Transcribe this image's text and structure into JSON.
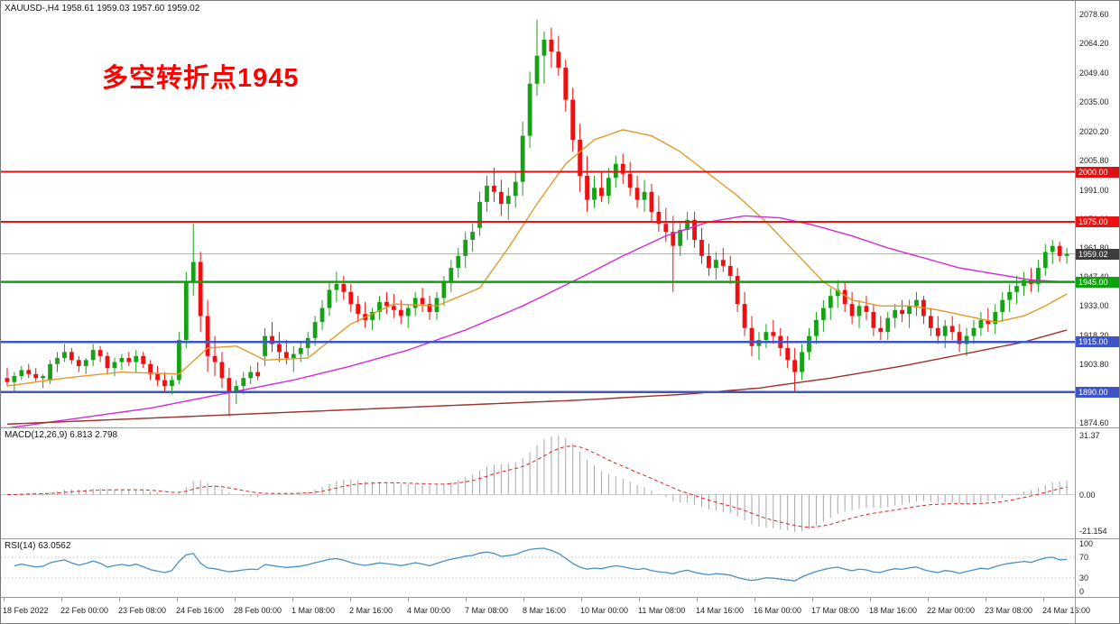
{
  "main_chart": {
    "symbol_line": "XAUUSD-,H4 1958.61 1959.03 1957.60 1959.02",
    "annotation": {
      "text": "多空转折点1945",
      "color": "#fe0000"
    },
    "bid": {
      "price": 1959.02,
      "label": "1959.02",
      "box_color": "#3c3c3c"
    },
    "y_axis_labels": [
      "2078.60",
      "2064.20",
      "2049.40",
      "2035.00",
      "2020.20",
      "2005.80",
      "1991.00",
      "1976.60",
      "1961.80",
      "1947.40",
      "1933.00",
      "1918.20",
      "1903.80",
      "1889.40",
      "1874.60"
    ],
    "h_lines": [
      {
        "price": 2000.0,
        "label": "2000.00",
        "color": "#dd1111",
        "width": 2
      },
      {
        "price": 1975.0,
        "label": "1975.00",
        "color": "#ee1111",
        "width": 2
      },
      {
        "price": 1945.0,
        "label": "1945.00",
        "color": "#0da30d",
        "width": 2.5
      },
      {
        "price": 1915.0,
        "label": "1915.00",
        "color": "#3d55c8",
        "width": 2.5
      },
      {
        "price": 1890.0,
        "label": "1890.00",
        "color": "#3d55c8",
        "width": 2.5
      }
    ]
  },
  "x_axis_labels": [
    "18 Feb 2022",
    "22 Feb 00:00",
    "23 Feb 08:00",
    "24 Feb 16:00",
    "28 Feb 00:00",
    "1 Mar 08:00",
    "2 Mar 16:00",
    "4 Mar 00:00",
    "7 Mar 08:00",
    "8 Mar 16:00",
    "10 Mar 00:00",
    "11 Mar 08:00",
    "14 Mar 16:00",
    "16 Mar 00:00",
    "17 Mar 08:00",
    "18 Mar 16:00",
    "22 Mar 00:00",
    "23 Mar 08:00",
    "24 Mar 16:00"
  ],
  "chart_data": {
    "type": "candlestick",
    "title": "XAUUSD- H4",
    "x_range": [
      "18 Feb 2022",
      "24 Mar 16:00"
    ],
    "y_range": [
      1874.6,
      2078.6
    ],
    "up_color": "#17a117",
    "down_color": "#ee0f0f",
    "candles": {
      "o": [
        1897,
        1895,
        1898,
        1901,
        1899,
        1897,
        1896,
        1904,
        1907,
        1910,
        1906,
        1903,
        1906,
        1911,
        1908,
        1902,
        1905,
        1907,
        1905,
        1908,
        1904,
        1899,
        1896,
        1893,
        1896,
        1916,
        1945,
        1955,
        1928,
        1908,
        1905,
        1897,
        1890,
        1893,
        1897,
        1900,
        1908,
        1918,
        1914,
        1910,
        1907,
        1909,
        1912,
        1917,
        1925,
        1932,
        1941,
        1944,
        1940,
        1934,
        1929,
        1926,
        1930,
        1935,
        1933,
        1931,
        1928,
        1932,
        1937,
        1934,
        1930,
        1937,
        1945,
        1952,
        1958,
        1966,
        1972,
        1985,
        1993,
        1990,
        1984,
        1988,
        1995,
        2018,
        2044,
        2058,
        2066,
        2060,
        2052,
        2036,
        2016,
        1998,
        1986,
        1992,
        1988,
        1997,
        2004,
        1999,
        1992,
        1986,
        1990,
        1980,
        1974,
        1970,
        1963,
        1971,
        1976,
        1966,
        1958,
        1952,
        1956,
        1953,
        1948,
        1934,
        1922,
        1913,
        1916,
        1920,
        1918,
        1912,
        1906,
        1900,
        1910,
        1918,
        1926,
        1932,
        1938,
        1941,
        1934,
        1928,
        1933,
        1930,
        1922,
        1920,
        1927,
        1931,
        1929,
        1933,
        1936,
        1928,
        1922,
        1918,
        1923,
        1920,
        1914,
        1918,
        1922,
        1926,
        1924,
        1930,
        1936,
        1940,
        1943,
        1946,
        1944,
        1952,
        1960,
        1963,
        1958
      ],
      "h": [
        1902,
        1900,
        1903,
        1904,
        1902,
        1899,
        1906,
        1910,
        1914,
        1912,
        1908,
        1907,
        1914,
        1913,
        1910,
        1907,
        1909,
        1910,
        1911,
        1910,
        1906,
        1903,
        1900,
        1898,
        1920,
        1950,
        1974,
        1960,
        1936,
        1918,
        1910,
        1902,
        1896,
        1900,
        1903,
        1905,
        1922,
        1925,
        1920,
        1916,
        1913,
        1915,
        1920,
        1928,
        1936,
        1945,
        1950,
        1948,
        1944,
        1938,
        1935,
        1932,
        1938,
        1940,
        1939,
        1936,
        1934,
        1940,
        1942,
        1938,
        1940,
        1948,
        1956,
        1962,
        1970,
        1974,
        1990,
        1998,
        2002,
        1996,
        1992,
        2000,
        2025,
        2050,
        2076,
        2070,
        2072,
        2068,
        2056,
        2042,
        2024,
        2008,
        1998,
        2000,
        2002,
        2008,
        2009,
        2005,
        1998,
        1996,
        1994,
        1988,
        1982,
        1978,
        1975,
        1980,
        1980,
        1972,
        1964,
        1960,
        1962,
        1958,
        1952,
        1940,
        1928,
        1920,
        1924,
        1926,
        1922,
        1918,
        1912,
        1914,
        1922,
        1930,
        1936,
        1942,
        1946,
        1945,
        1940,
        1936,
        1938,
        1934,
        1928,
        1930,
        1934,
        1936,
        1936,
        1940,
        1938,
        1932,
        1928,
        1926,
        1928,
        1924,
        1922,
        1926,
        1930,
        1932,
        1934,
        1940,
        1944,
        1948,
        1950,
        1952,
        1956,
        1964,
        1966,
        1965,
        1962
      ],
      "l": [
        1893,
        1890,
        1896,
        1897,
        1895,
        1892,
        1894,
        1900,
        1905,
        1904,
        1900,
        1899,
        1903,
        1905,
        1899,
        1898,
        1901,
        1903,
        1900,
        1902,
        1896,
        1893,
        1890,
        1889,
        1894,
        1912,
        1938,
        1920,
        1900,
        1898,
        1892,
        1878,
        1884,
        1889,
        1894,
        1896,
        1903,
        1910,
        1905,
        1904,
        1900,
        1905,
        1908,
        1913,
        1921,
        1928,
        1935,
        1936,
        1930,
        1925,
        1922,
        1921,
        1926,
        1929,
        1927,
        1924,
        1922,
        1928,
        1930,
        1926,
        1926,
        1933,
        1940,
        1947,
        1952,
        1960,
        1968,
        1980,
        1985,
        1978,
        1976,
        1982,
        1988,
        2012,
        2038,
        2044,
        2052,
        2048,
        2030,
        2010,
        1990,
        1980,
        1982,
        1985,
        1984,
        1992,
        1994,
        1988,
        1982,
        1980,
        1975,
        1970,
        1965,
        1940,
        1958,
        1966,
        1962,
        1954,
        1948,
        1946,
        1950,
        1944,
        1930,
        1918,
        1908,
        1906,
        1912,
        1914,
        1908,
        1902,
        1890,
        1896,
        1906,
        1914,
        1920,
        1926,
        1932,
        1930,
        1924,
        1922,
        1926,
        1918,
        1916,
        1916,
        1922,
        1925,
        1922,
        1928,
        1924,
        1918,
        1914,
        1912,
        1916,
        1910,
        1908,
        1914,
        1918,
        1920,
        1919,
        1925,
        1930,
        1934,
        1938,
        1940,
        1940,
        1948,
        1954,
        1955,
        1954
      ],
      "c": [
        1895,
        1898,
        1901,
        1899,
        1897,
        1898,
        1904,
        1907,
        1910,
        1906,
        1903,
        1906,
        1911,
        1908,
        1902,
        1905,
        1907,
        1905,
        1908,
        1904,
        1899,
        1896,
        1893,
        1896,
        1916,
        1945,
        1955,
        1928,
        1908,
        1905,
        1897,
        1890,
        1893,
        1897,
        1900,
        1898,
        1918,
        1914,
        1910,
        1907,
        1909,
        1912,
        1917,
        1925,
        1932,
        1941,
        1944,
        1940,
        1934,
        1929,
        1926,
        1930,
        1935,
        1933,
        1931,
        1928,
        1932,
        1937,
        1934,
        1930,
        1937,
        1945,
        1952,
        1958,
        1966,
        1970,
        1985,
        1993,
        1990,
        1984,
        1988,
        1995,
        2018,
        2044,
        2058,
        2066,
        2060,
        2052,
        2036,
        2016,
        1998,
        1986,
        1992,
        1988,
        1997,
        2004,
        1999,
        1992,
        1986,
        1990,
        1980,
        1974,
        1970,
        1963,
        1971,
        1976,
        1966,
        1958,
        1952,
        1956,
        1953,
        1948,
        1934,
        1922,
        1913,
        1916,
        1920,
        1918,
        1912,
        1906,
        1900,
        1910,
        1918,
        1926,
        1932,
        1938,
        1941,
        1934,
        1928,
        1933,
        1930,
        1922,
        1920,
        1927,
        1931,
        1929,
        1933,
        1936,
        1928,
        1922,
        1918,
        1923,
        1920,
        1914,
        1918,
        1922,
        1926,
        1924,
        1930,
        1936,
        1940,
        1943,
        1946,
        1944,
        1952,
        1960,
        1963,
        1958,
        1959.02
      ]
    },
    "moving_averages": [
      {
        "name": "ma-fast",
        "color": "#e09a28",
        "points": [
          [
            0,
            1893
          ],
          [
            8,
            1897
          ],
          [
            16,
            1900
          ],
          [
            24,
            1899
          ],
          [
            28,
            1912
          ],
          [
            32,
            1913
          ],
          [
            36,
            1906
          ],
          [
            42,
            1907
          ],
          [
            48,
            1924
          ],
          [
            54,
            1934
          ],
          [
            60,
            1933
          ],
          [
            66,
            1942
          ],
          [
            70,
            1962
          ],
          [
            74,
            1984
          ],
          [
            78,
            2004
          ],
          [
            82,
            2016
          ],
          [
            86,
            2021
          ],
          [
            90,
            2018
          ],
          [
            94,
            2010
          ],
          [
            98,
            1999
          ],
          [
            102,
            1988
          ],
          [
            106,
            1975
          ],
          [
            110,
            1960
          ],
          [
            114,
            1945
          ],
          [
            118,
            1936
          ],
          [
            122,
            1933
          ],
          [
            126,
            1933
          ],
          [
            130,
            1931
          ],
          [
            134,
            1928
          ],
          [
            138,
            1925
          ],
          [
            142,
            1928
          ],
          [
            145,
            1933
          ],
          [
            148,
            1939
          ]
        ]
      },
      {
        "name": "ma-mid",
        "color": "#d42ad4",
        "points": [
          [
            0,
            1872
          ],
          [
            10,
            1877
          ],
          [
            20,
            1882
          ],
          [
            30,
            1889
          ],
          [
            40,
            1896
          ],
          [
            48,
            1903
          ],
          [
            56,
            1911
          ],
          [
            64,
            1921
          ],
          [
            72,
            1933
          ],
          [
            80,
            1947
          ],
          [
            86,
            1958
          ],
          [
            92,
            1968
          ],
          [
            98,
            1975
          ],
          [
            103,
            1978
          ],
          [
            108,
            1977
          ],
          [
            113,
            1973
          ],
          [
            118,
            1968
          ],
          [
            123,
            1962
          ],
          [
            128,
            1957
          ],
          [
            133,
            1952
          ],
          [
            138,
            1949
          ],
          [
            143,
            1946
          ],
          [
            148,
            1945
          ]
        ]
      },
      {
        "name": "ma-slow",
        "color": "#a0302a",
        "points": [
          [
            0,
            1874
          ],
          [
            20,
            1877
          ],
          [
            40,
            1880
          ],
          [
            60,
            1883
          ],
          [
            80,
            1886
          ],
          [
            95,
            1889
          ],
          [
            105,
            1892
          ],
          [
            115,
            1897
          ],
          [
            125,
            1903
          ],
          [
            135,
            1910
          ],
          [
            142,
            1915
          ],
          [
            148,
            1921
          ]
        ]
      }
    ],
    "indicators": {
      "macd": {
        "label": "MACD(12,26,9) 6.813 2.798",
        "fast": 12,
        "slow": 26,
        "signal": 9,
        "value_main": "6.813",
        "value_signal": "2.798",
        "y_labels": [
          "31.37",
          "0.00",
          "-21.154"
        ],
        "histogram_color": "#a6a6a6",
        "signal_color": "#dd2222"
      },
      "rsi": {
        "label": "RSI(14) 63.0562",
        "period": 14,
        "value": "63.0562",
        "y_labels": [
          "100",
          "70",
          "30",
          "0"
        ],
        "levels": [
          70,
          30
        ],
        "line_color": "#4a90c2"
      }
    }
  }
}
